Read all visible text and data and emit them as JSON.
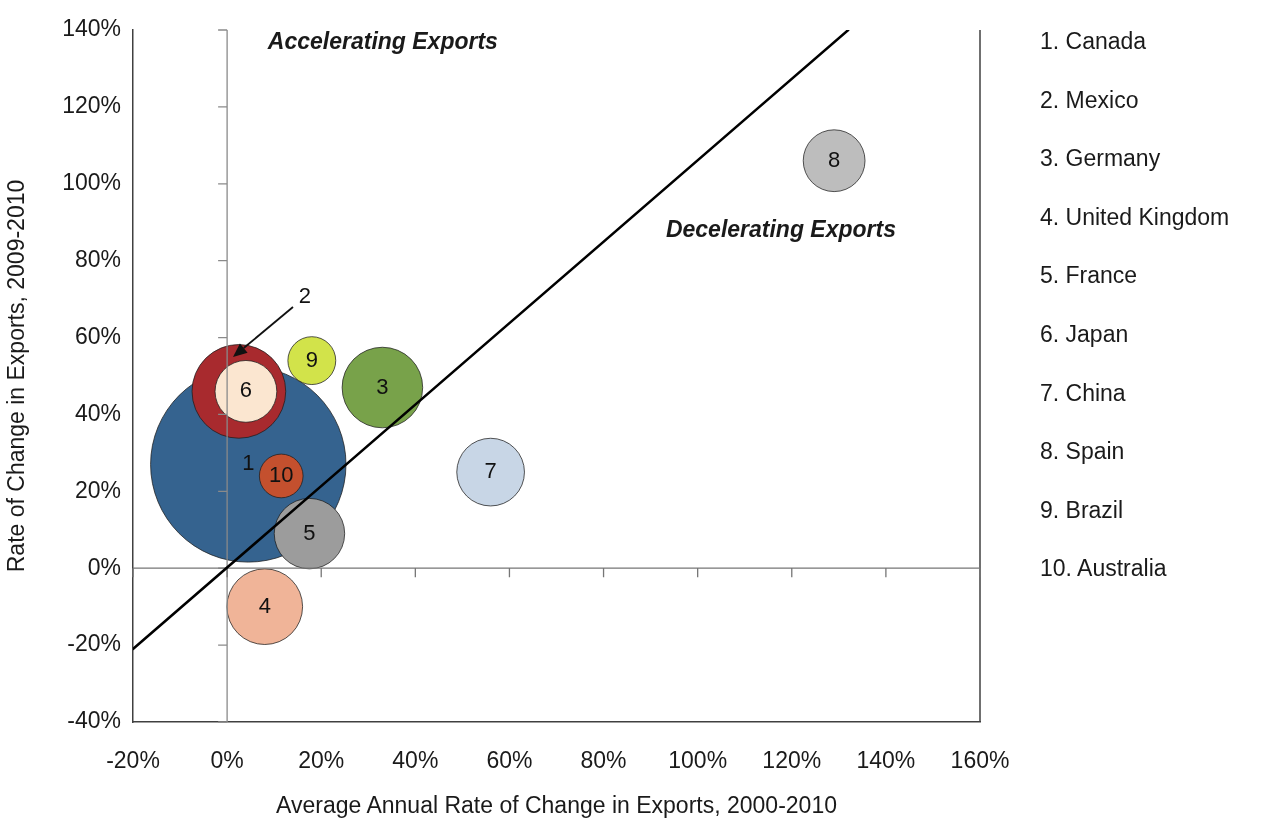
{
  "chart_data": {
    "type": "bubble",
    "xlabel": "Average Annual Rate of Change in Exports, 2000-2010",
    "ylabel": "Rate of Change in Exports, 2009-2010",
    "xlim": [
      -20,
      160
    ],
    "xticks": [
      {
        "value": -20,
        "label": "-20%"
      },
      {
        "value": 0,
        "label": "0%"
      },
      {
        "value": 20,
        "label": "20%"
      },
      {
        "value": 40,
        "label": "40%"
      },
      {
        "value": 60,
        "label": "60%"
      },
      {
        "value": 80,
        "label": "80%"
      },
      {
        "value": 100,
        "label": "100%"
      },
      {
        "value": 120,
        "label": "120%"
      },
      {
        "value": 140,
        "label": "140%"
      },
      {
        "value": 160,
        "label": "160%"
      }
    ],
    "ylim": [
      -40,
      140
    ],
    "yticks": [
      {
        "value": -40,
        "label": "-40%"
      },
      {
        "value": -20,
        "label": "-20%"
      },
      {
        "value": 0,
        "label": "0%"
      },
      {
        "value": 20,
        "label": "20%"
      },
      {
        "value": 40,
        "label": "40%"
      },
      {
        "value": 60,
        "label": "60%"
      },
      {
        "value": 80,
        "label": "80%"
      },
      {
        "value": 100,
        "label": "100%"
      },
      {
        "value": 120,
        "label": "120%"
      },
      {
        "value": 140,
        "label": "140%"
      }
    ],
    "grid": false,
    "legend": false,
    "series": [
      {
        "name": "1",
        "color": "#35638f",
        "x": [
          4.5
        ],
        "values": [
          27
        ],
        "sizes": [
          1
        ]
      },
      {
        "name": "2",
        "color": "#a82a2e",
        "x": [
          2.5
        ],
        "values": [
          46
        ],
        "sizes": [
          0.23
        ]
      },
      {
        "name": "3",
        "color": "#78a24a",
        "x": [
          33
        ],
        "values": [
          47
        ],
        "sizes": [
          0.17
        ]
      },
      {
        "name": "4",
        "color": "#f0b498",
        "x": [
          8
        ],
        "values": [
          -10
        ],
        "sizes": [
          0.15
        ]
      },
      {
        "name": "5",
        "color": "#9c9c9c",
        "x": [
          17.5
        ],
        "values": [
          9
        ],
        "sizes": [
          0.13
        ]
      },
      {
        "name": "6",
        "color": "#fbe6d0",
        "x": [
          4
        ],
        "values": [
          46
        ],
        "sizes": [
          0.1
        ]
      },
      {
        "name": "7",
        "color": "#c8d6e6",
        "x": [
          56
        ],
        "values": [
          25
        ],
        "sizes": [
          0.12
        ]
      },
      {
        "name": "8",
        "color": "#bdbdbd",
        "x": [
          129
        ],
        "values": [
          106
        ],
        "sizes": [
          0.1
        ]
      },
      {
        "name": "9",
        "color": "#d2e34a",
        "x": [
          18
        ],
        "values": [
          54
        ],
        "sizes": [
          0.06
        ]
      },
      {
        "name": "10",
        "color": "#c4502e",
        "x": [
          11.5
        ],
        "values": [
          24
        ],
        "sizes": [
          0.05
        ]
      },
      {
        "type": "line",
        "x": [
          -20,
          132
        ],
        "values": [
          -21,
          140
        ],
        "color": "#000000"
      }
    ],
    "ref_lines": [
      {
        "axis": "x",
        "value": 0,
        "color": "#8a8a8a"
      },
      {
        "axis": "y",
        "value": 0,
        "color": "#767676"
      }
    ],
    "annotations": [
      "Accelerating Exports",
      "Decelerating Exports",
      "1. Canada",
      "2. Mexico",
      "3. Germany",
      "4. United Kingdom",
      "5. France",
      "6. Japan",
      "7. China",
      "8. Spain",
      "9. Brazil",
      "10. Australia"
    ]
  }
}
